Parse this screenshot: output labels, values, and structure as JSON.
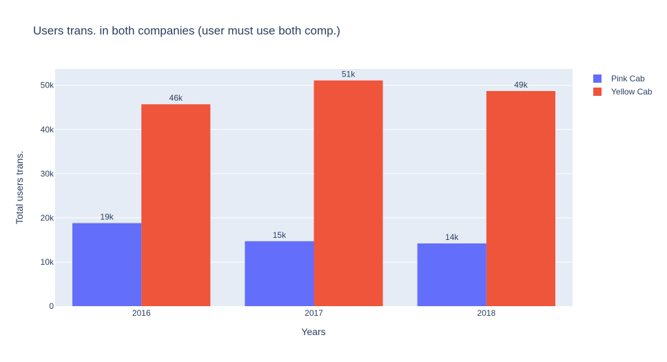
{
  "chart_data": {
    "type": "bar",
    "title": "Users trans. in both companies (user must use both comp.)",
    "xlabel": "Years",
    "ylabel": "Total users trans.",
    "categories": [
      "2016",
      "2017",
      "2018"
    ],
    "series": [
      {
        "name": "Pink Cab",
        "color": "#636efa",
        "values": [
          18800,
          14700,
          14200
        ],
        "labels": [
          "19k",
          "15k",
          "14k"
        ]
      },
      {
        "name": "Yellow Cab",
        "color": "#ef553b",
        "values": [
          45700,
          51100,
          48700
        ],
        "labels": [
          "46k",
          "51k",
          "49k"
        ]
      }
    ],
    "ylim": [
      0,
      53700
    ],
    "yticks": [
      0,
      10000,
      20000,
      30000,
      40000,
      50000
    ],
    "ytick_labels": [
      "0",
      "10k",
      "20k",
      "30k",
      "40k",
      "50k"
    ],
    "grid": true,
    "legend_position": "top-right",
    "plot_background": "#e5ecf6"
  }
}
